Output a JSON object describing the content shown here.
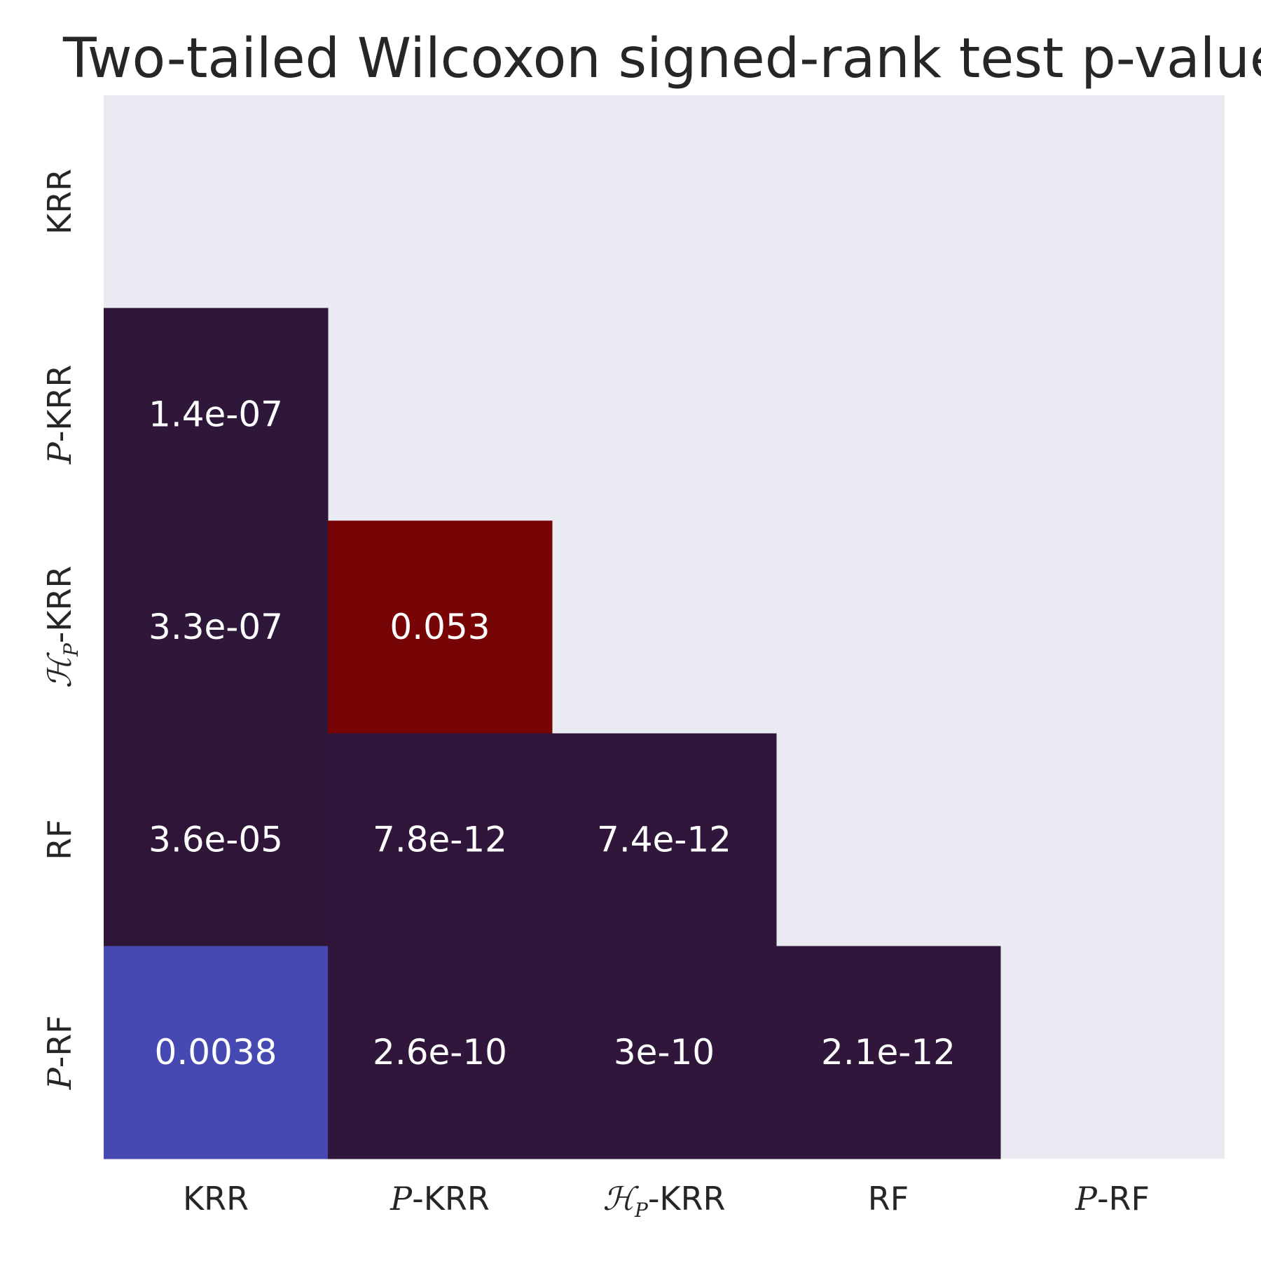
{
  "chart_data": {
    "type": "heatmap",
    "title": "Two-tailed Wilcoxon signed-rank test p-values",
    "xlabel": "",
    "ylabel": "",
    "x_categories": [
      {
        "prefix": "",
        "italic": "",
        "subscript": "",
        "suffix": "KRR",
        "full": "KRR"
      },
      {
        "prefix": "",
        "italic": "P",
        "subscript": "",
        "suffix": "-KRR",
        "full": "P-KRR"
      },
      {
        "prefix": "",
        "italic": "ℋ",
        "subscript": "P",
        "suffix": "-KRR",
        "full": "ℋP-KRR"
      },
      {
        "prefix": "",
        "italic": "",
        "subscript": "",
        "suffix": "RF",
        "full": "RF"
      },
      {
        "prefix": "",
        "italic": "P",
        "subscript": "",
        "suffix": "-RF",
        "full": "P-RF"
      }
    ],
    "y_categories": [
      {
        "italic": "",
        "subscript": "",
        "suffix": "KRR",
        "full": "KRR"
      },
      {
        "italic": "P",
        "subscript": "",
        "suffix": "-KRR",
        "full": "P-KRR"
      },
      {
        "italic": "ℋ",
        "subscript": "P",
        "suffix": "-KRR",
        "full": "ℋP-KRR"
      },
      {
        "italic": "",
        "subscript": "",
        "suffix": "RF",
        "full": "RF"
      },
      {
        "italic": "P",
        "subscript": "",
        "suffix": "-RF",
        "full": "P-RF"
      }
    ],
    "mask": "upper-triangle-including-diagonal",
    "cells": [
      {
        "row": 1,
        "col": 0,
        "label": "1.4e-07",
        "value": 1.4e-07,
        "color": "#2e1739"
      },
      {
        "row": 2,
        "col": 0,
        "label": "3.3e-07",
        "value": 3.3e-07,
        "color": "#2e1739"
      },
      {
        "row": 2,
        "col": 1,
        "label": "0.053",
        "value": 0.053,
        "color": "#780506"
      },
      {
        "row": 3,
        "col": 0,
        "label": "3.6e-05",
        "value": 3.6e-05,
        "color": "#2f1639"
      },
      {
        "row": 3,
        "col": 1,
        "label": "7.8e-12",
        "value": 7.8e-12,
        "color": "#30163a"
      },
      {
        "row": 3,
        "col": 2,
        "label": "7.4e-12",
        "value": 7.4e-12,
        "color": "#30163a"
      },
      {
        "row": 4,
        "col": 0,
        "label": "0.0038",
        "value": 0.0038,
        "color": "#4549b1"
      },
      {
        "row": 4,
        "col": 1,
        "label": "2.6e-10",
        "value": 2.6e-10,
        "color": "#30163a"
      },
      {
        "row": 4,
        "col": 2,
        "label": "3e-10",
        "value": 3e-10,
        "color": "#30163a"
      },
      {
        "row": 4,
        "col": 3,
        "label": "2.1e-12",
        "value": 2.1e-12,
        "color": "#30163a"
      }
    ],
    "colorbar": false,
    "grid": false
  },
  "colors": {
    "background": "#eaeaf2",
    "text_dark": "#262626",
    "text_light": "#ffffff"
  }
}
